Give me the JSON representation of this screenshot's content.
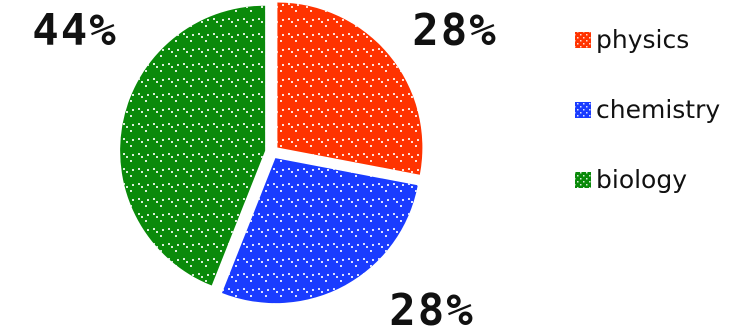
{
  "chart_data": {
    "type": "pie",
    "slices": [
      {
        "name": "physics",
        "value": 28,
        "label": "28%",
        "color": "#ff3300"
      },
      {
        "name": "chemistry",
        "value": 28,
        "label": "28%",
        "color": "#1a3cff"
      },
      {
        "name": "biology",
        "value": 44,
        "label": "44%",
        "color": "#0a8a0a"
      }
    ],
    "legend": {
      "placement": "right",
      "entries": [
        "physics",
        "chemistry",
        "biology"
      ]
    },
    "exploded": true,
    "pattern": "dotted-hatch"
  }
}
